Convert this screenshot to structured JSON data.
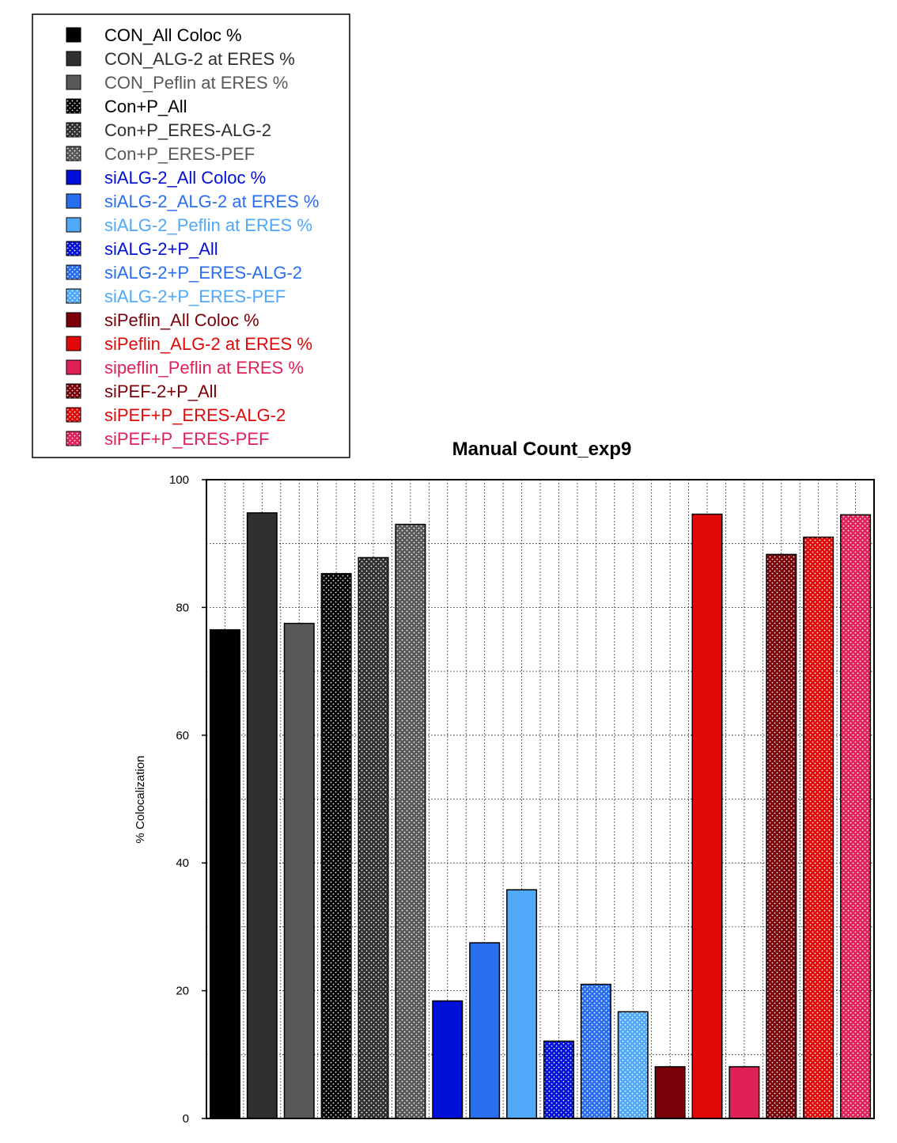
{
  "chart_data": {
    "type": "bar",
    "title": "Manual Count_exp9",
    "ylabel": "% Colocalization",
    "xlabel": "",
    "ylim": [
      0,
      100
    ],
    "yticks": [
      0,
      20,
      40,
      60,
      80,
      100
    ],
    "grid": true,
    "legend_position": "top-left",
    "series": [
      {
        "name": "CON_All Coloc %",
        "value": 76.5,
        "color": "#000000",
        "pattern": "solid",
        "text_color": "#000000"
      },
      {
        "name": "CON_ALG-2 at ERES %",
        "value": 94.8,
        "color": "#303030",
        "pattern": "solid",
        "text_color": "#303030"
      },
      {
        "name": "CON_Peflin at ERES %",
        "value": 77.5,
        "color": "#585858",
        "pattern": "solid",
        "text_color": "#585858"
      },
      {
        "name": "Con+P_All",
        "value": 85.3,
        "color": "#000000",
        "pattern": "dots",
        "text_color": "#000000"
      },
      {
        "name": "Con+P_ERES-ALG-2",
        "value": 87.8,
        "color": "#303030",
        "pattern": "dots",
        "text_color": "#303030"
      },
      {
        "name": "Con+P_ERES-PEF",
        "value": 93.0,
        "color": "#585858",
        "pattern": "dots",
        "text_color": "#585858"
      },
      {
        "name": "siALG-2_All Coloc %",
        "value": 18.4,
        "color": "#0010d8",
        "pattern": "solid",
        "text_color": "#0010d8"
      },
      {
        "name": "siALG-2_ALG-2 at ERES %",
        "value": 27.5,
        "color": "#2a6ef0",
        "pattern": "solid",
        "text_color": "#2a6ef0"
      },
      {
        "name": "siALG-2_Peflin at ERES %",
        "value": 35.8,
        "color": "#4fa8f8",
        "pattern": "solid",
        "text_color": "#4fa8f8"
      },
      {
        "name": "siALG-2+P_All",
        "value": 12.1,
        "color": "#0010d8",
        "pattern": "dots",
        "text_color": "#0010d8"
      },
      {
        "name": "siALG-2+P_ERES-ALG-2",
        "value": 21.0,
        "color": "#2a6ef0",
        "pattern": "dots",
        "text_color": "#2a6ef0"
      },
      {
        "name": "siALG-2+P_ERES-PEF",
        "value": 16.7,
        "color": "#4fa8f8",
        "pattern": "dots",
        "text_color": "#4fa8f8"
      },
      {
        "name": "siPeflin_All Coloc %",
        "value": 8.1,
        "color": "#7a0008",
        "pattern": "solid",
        "text_color": "#7a0008"
      },
      {
        "name": "siPeflin_ALG-2 at ERES %",
        "value": 94.6,
        "color": "#e00808",
        "pattern": "solid",
        "text_color": "#e00808"
      },
      {
        "name": "sipeflin_Peflin at ERES %",
        "value": 8.1,
        "color": "#e02058",
        "pattern": "solid",
        "text_color": "#e02058"
      },
      {
        "name": "siPEF-2+P_All",
        "value": 88.3,
        "color": "#7a0008",
        "pattern": "dots",
        "text_color": "#7a0008"
      },
      {
        "name": "siPEF+P_ERES-ALG-2",
        "value": 91.0,
        "color": "#e00808",
        "pattern": "dots",
        "text_color": "#e00808"
      },
      {
        "name": "siPEF+P_ERES-PEF",
        "value": 94.5,
        "color": "#e02058",
        "pattern": "dots",
        "text_color": "#e02058"
      }
    ]
  }
}
